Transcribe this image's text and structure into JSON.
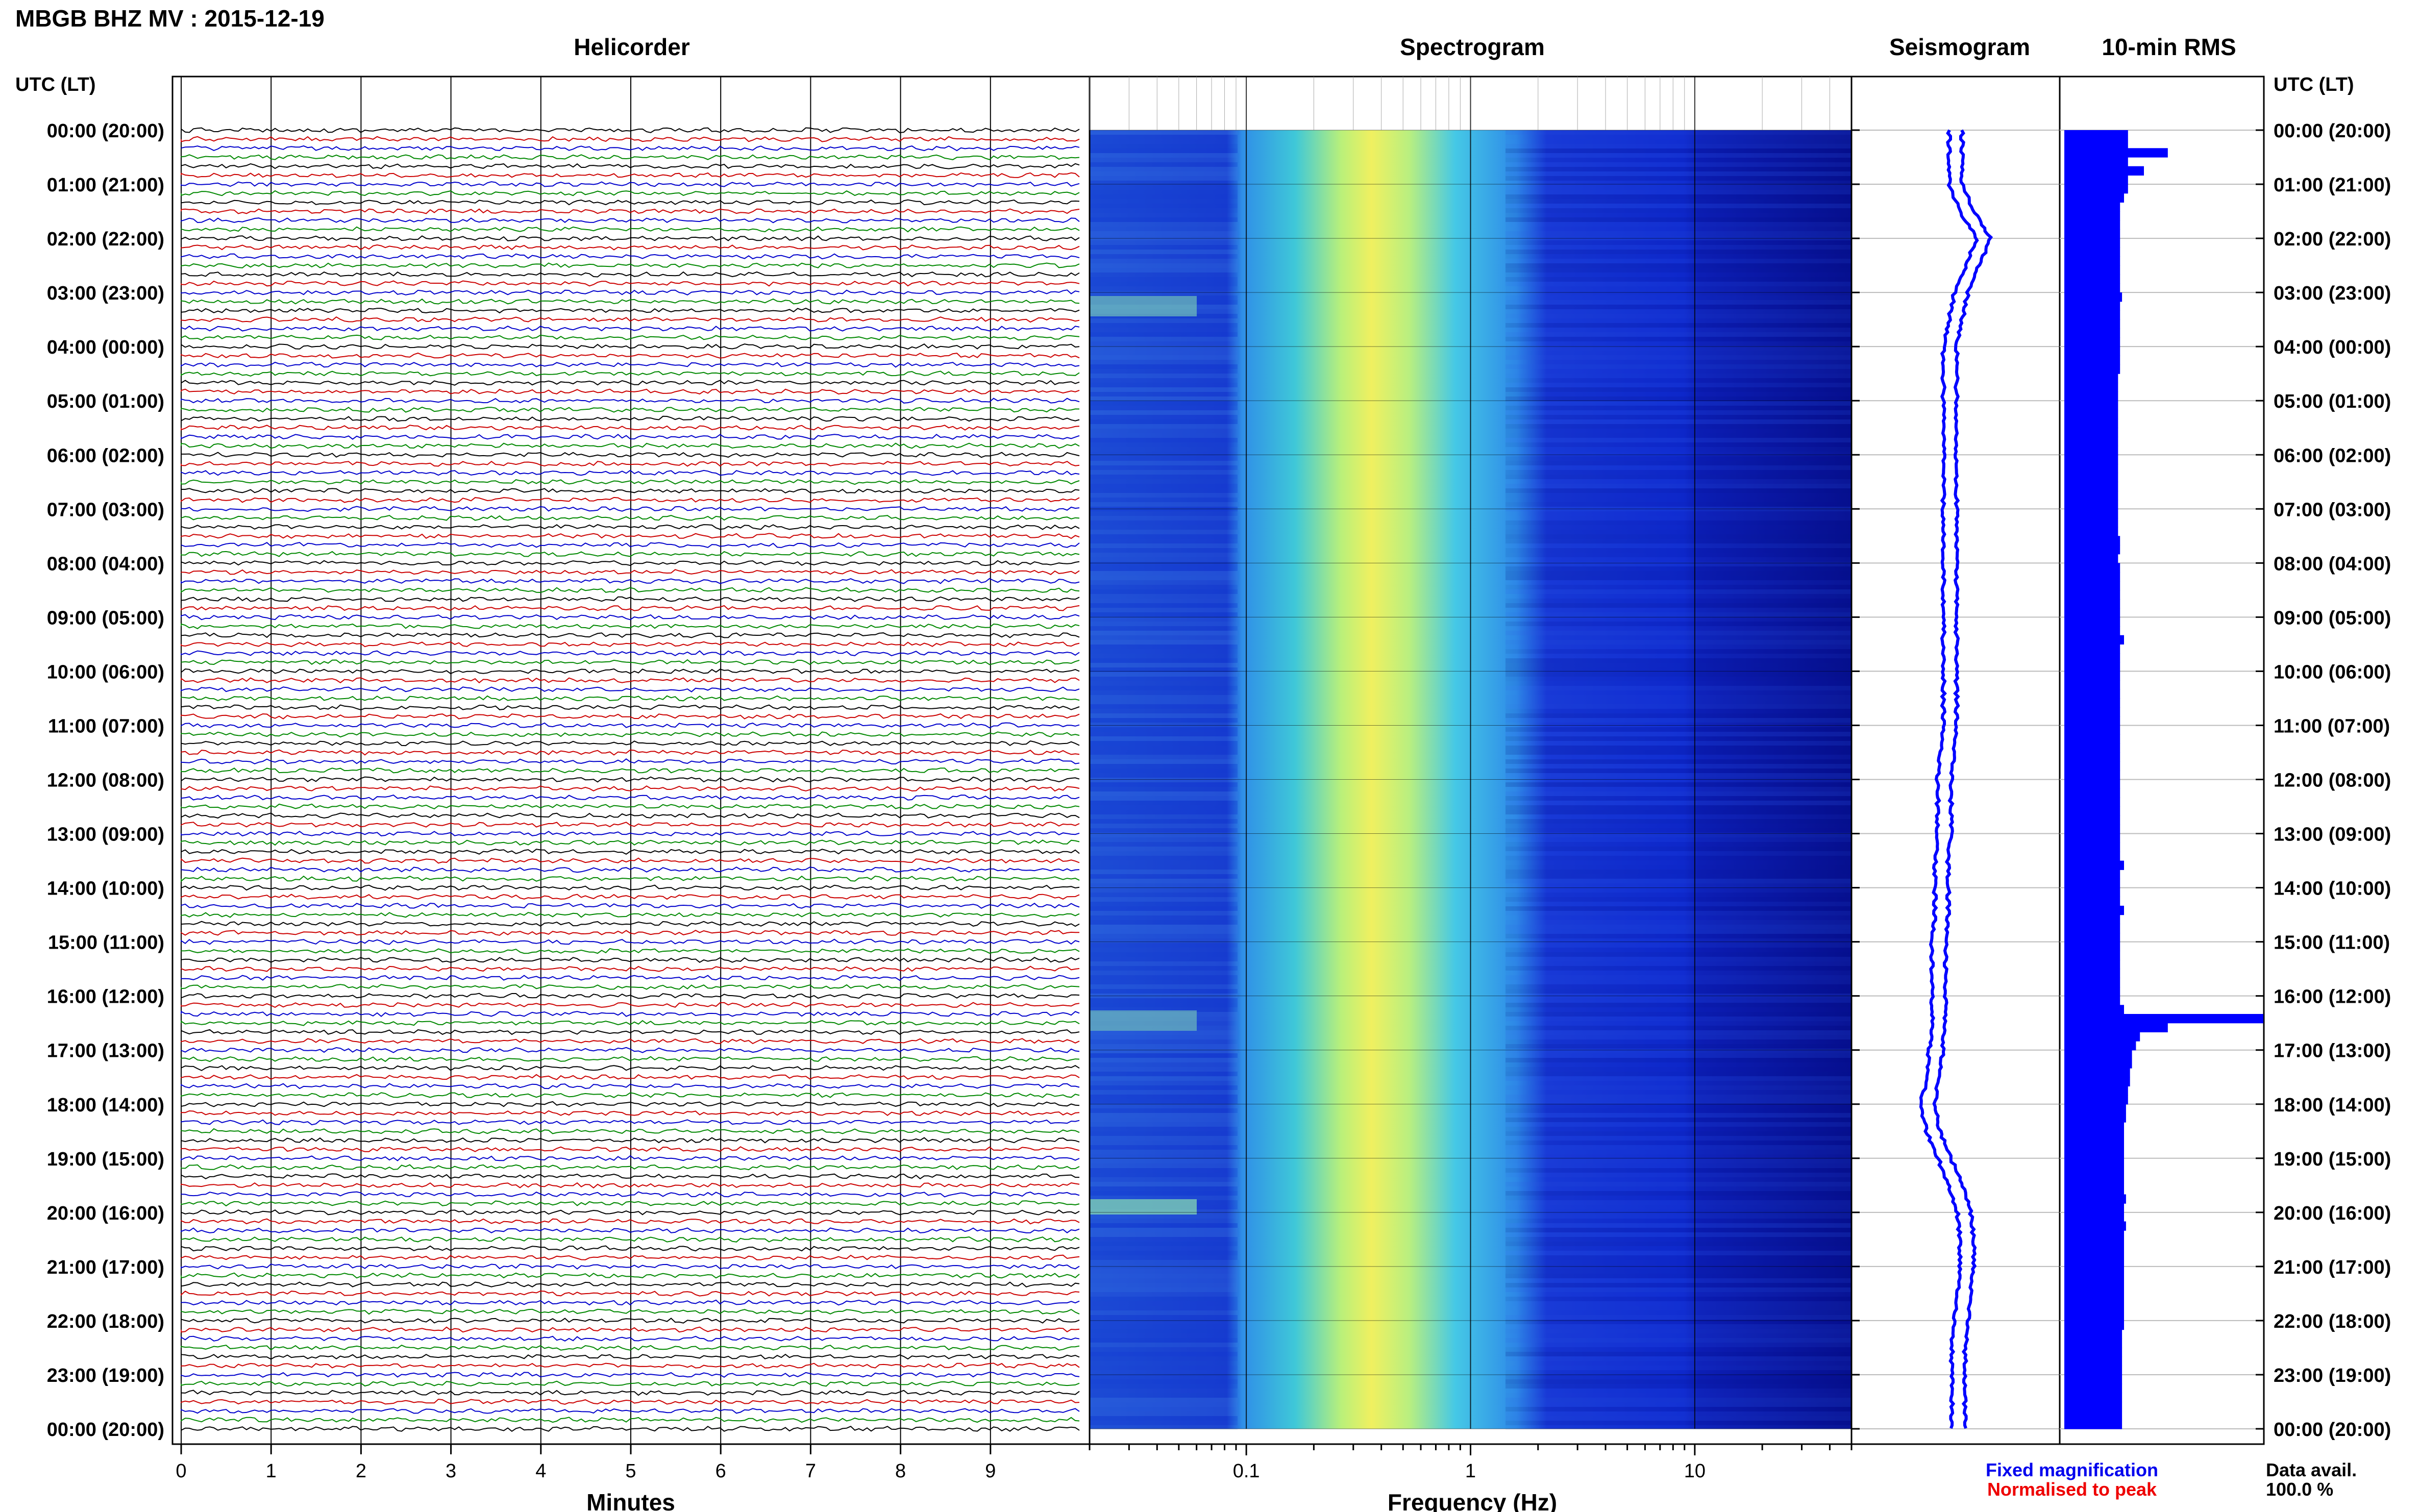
{
  "header": {
    "station": "MBGB BHZ MV : 2015-12-19",
    "time_label_left": "UTC (LT)",
    "time_label_right": "UTC (LT)"
  },
  "panels": {
    "helicorder": "Helicorder",
    "spectrogram": "Spectrogram",
    "seismogram": "Seismogram",
    "rms": "10-min RMS"
  },
  "time_labels": [
    "00:00 (20:00)",
    "01:00 (21:00)",
    "02:00 (22:00)",
    "03:00 (23:00)",
    "04:00 (00:00)",
    "05:00 (01:00)",
    "06:00 (02:00)",
    "07:00 (03:00)",
    "08:00 (04:00)",
    "09:00 (05:00)",
    "10:00 (06:00)",
    "11:00 (07:00)",
    "12:00 (08:00)",
    "13:00 (09:00)",
    "14:00 (10:00)",
    "15:00 (11:00)",
    "16:00 (12:00)",
    "17:00 (13:00)",
    "18:00 (14:00)",
    "19:00 (15:00)",
    "20:00 (16:00)",
    "21:00 (17:00)",
    "22:00 (18:00)",
    "23:00 (19:00)",
    "00:00 (20:00)"
  ],
  "helicorder_axis": {
    "label": "Minutes",
    "ticks": [
      "0",
      "1",
      "2",
      "3",
      "4",
      "5",
      "6",
      "7",
      "8",
      "9"
    ],
    "trace_colors": [
      "#000000",
      "#cc0000",
      "#0000cc",
      "#008800"
    ]
  },
  "spectrogram_axis": {
    "label": "Frequency (Hz)",
    "ticks": [
      "0.1",
      "1",
      "10"
    ],
    "scale": "log",
    "xlim": [
      0.02,
      50
    ]
  },
  "legend": {
    "fixed": "Fixed magnification",
    "normalised": "Normalised to peak",
    "fixed_color": "#0000ee",
    "normalised_color": "#ee0000"
  },
  "data_avail": {
    "label": "Data avail.",
    "value": "100.0 %"
  },
  "chart_data": {
    "type": "table",
    "rows_per_hour": 6,
    "hours": 24,
    "rms_color": "#0000ff",
    "rms_values_10min": [
      0.32,
      0.32,
      0.52,
      0.32,
      0.4,
      0.32,
      0.32,
      0.3,
      0.28,
      0.28,
      0.28,
      0.28,
      0.28,
      0.28,
      0.28,
      0.28,
      0.28,
      0.28,
      0.29,
      0.28,
      0.28,
      0.28,
      0.28,
      0.28,
      0.28,
      0.28,
      0.28,
      0.27,
      0.27,
      0.27,
      0.27,
      0.27,
      0.27,
      0.27,
      0.27,
      0.27,
      0.27,
      0.27,
      0.27,
      0.27,
      0.27,
      0.27,
      0.27,
      0.27,
      0.27,
      0.28,
      0.28,
      0.27,
      0.28,
      0.28,
      0.28,
      0.28,
      0.28,
      0.28,
      0.28,
      0.28,
      0.3,
      0.28,
      0.28,
      0.28,
      0.28,
      0.28,
      0.28,
      0.28,
      0.28,
      0.28,
      0.28,
      0.28,
      0.28,
      0.28,
      0.28,
      0.28,
      0.28,
      0.28,
      0.28,
      0.28,
      0.28,
      0.28,
      0.28,
      0.28,
      0.28,
      0.3,
      0.28,
      0.28,
      0.28,
      0.28,
      0.3,
      0.28,
      0.28,
      0.28,
      0.28,
      0.28,
      0.28,
      0.28,
      0.28,
      0.28,
      0.28,
      0.3,
      1.0,
      0.52,
      0.38,
      0.36,
      0.34,
      0.34,
      0.33,
      0.33,
      0.32,
      0.32,
      0.31,
      0.31,
      0.3,
      0.3,
      0.3,
      0.3,
      0.3,
      0.3,
      0.3,
      0.3,
      0.31,
      0.3,
      0.3,
      0.31,
      0.3,
      0.3,
      0.3,
      0.3,
      0.3,
      0.3,
      0.3,
      0.3,
      0.3,
      0.3,
      0.3,
      0.29,
      0.29,
      0.29,
      0.29,
      0.29,
      0.29,
      0.29,
      0.29,
      0.29,
      0.29,
      0.29
    ],
    "seismogram_offset": [
      0.0,
      0.0,
      0.0,
      0.2,
      0.5,
      0.3,
      0.1,
      0.0,
      -0.1,
      -0.1,
      -0.1,
      -0.1,
      -0.1,
      -0.1,
      -0.1,
      -0.1,
      -0.1,
      -0.1,
      -0.1,
      -0.1,
      -0.1,
      -0.1,
      -0.1,
      -0.15,
      -0.2,
      -0.2,
      -0.2,
      -0.25,
      -0.25,
      -0.25,
      -0.3,
      -0.3,
      -0.3,
      -0.3,
      -0.35,
      -0.4,
      -0.5,
      -0.4,
      -0.2,
      0.0,
      0.15,
      0.2,
      0.2,
      0.15,
      0.1,
      0.05,
      0.05,
      0.05,
      0.05
    ]
  }
}
